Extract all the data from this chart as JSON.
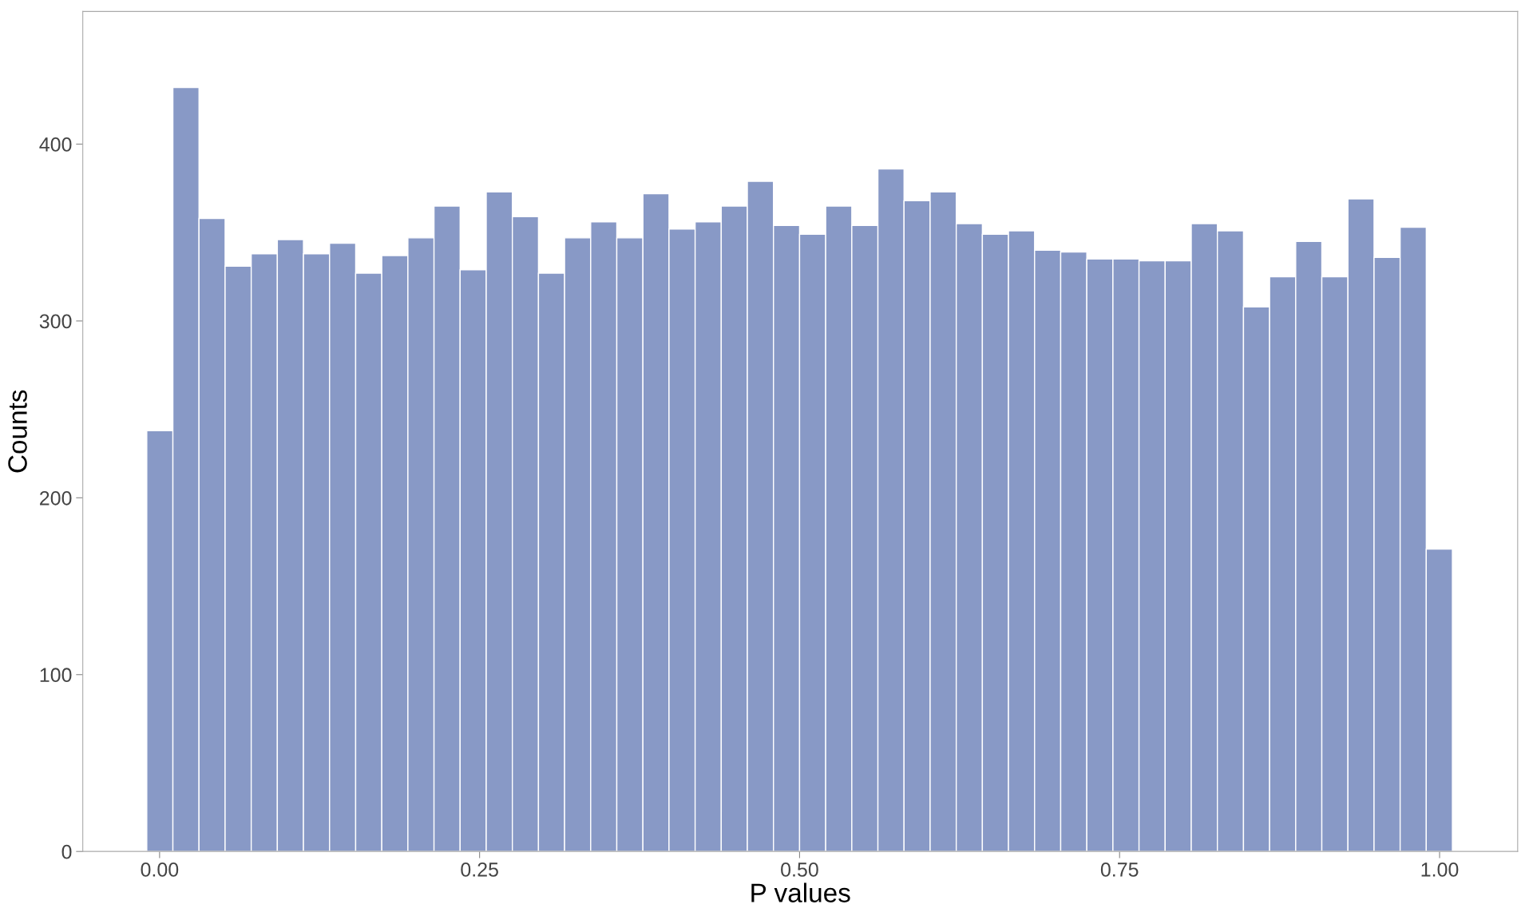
{
  "chart_data": {
    "type": "histogram",
    "xlabel": "P values",
    "ylabel": "Counts",
    "bins": [
      -0.01,
      0.0104,
      0.0308,
      0.0512,
      0.0716,
      0.092,
      0.1124,
      0.1328,
      0.1532,
      0.1736,
      0.194,
      0.2144,
      0.2348,
      0.2552,
      0.2756,
      0.296,
      0.3164,
      0.3368,
      0.3572,
      0.3776,
      0.398,
      0.4184,
      0.4388,
      0.4592,
      0.4796,
      0.5,
      0.5204,
      0.5408,
      0.5612,
      0.5816,
      0.602,
      0.6224,
      0.6428,
      0.6632,
      0.6836,
      0.704,
      0.7244,
      0.7448,
      0.7652,
      0.7856,
      0.806,
      0.8264,
      0.8468,
      0.8672,
      0.8876,
      0.908,
      0.9284,
      0.9488,
      0.9692,
      0.9896,
      1.01
    ],
    "values": [
      238,
      432,
      358,
      331,
      338,
      346,
      338,
      344,
      327,
      337,
      347,
      365,
      329,
      373,
      359,
      327,
      347,
      356,
      347,
      372,
      352,
      356,
      365,
      379,
      354,
      349,
      365,
      354,
      386,
      368,
      373,
      355,
      349,
      351,
      340,
      339,
      335,
      335,
      334,
      334,
      355,
      351,
      308,
      325,
      345,
      325,
      369,
      336,
      353,
      171
    ],
    "color": "#8899c6",
    "xlim": [
      -0.06,
      1.061
    ],
    "ylim": [
      0,
      475
    ],
    "xticks": [
      {
        "value": 0,
        "label": "0.00"
      },
      {
        "value": 0.25,
        "label": "0.25"
      },
      {
        "value": 0.5,
        "label": "0.50"
      },
      {
        "value": 0.75,
        "label": "0.75"
      },
      {
        "value": 1,
        "label": "1.00"
      }
    ],
    "yticks": [
      0,
      100,
      200,
      300,
      400
    ],
    "grid": false
  }
}
